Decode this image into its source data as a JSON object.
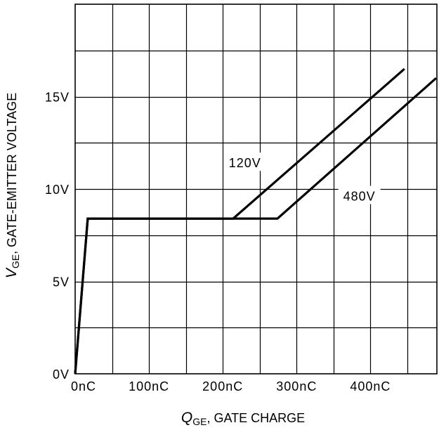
{
  "chart_data": {
    "type": "line",
    "title": "",
    "xlabel": {
      "var": "Q",
      "sub": "GE",
      "rest": ", GATE CHARGE"
    },
    "ylabel": {
      "var": "V",
      "sub": "GE",
      "rest": ", GATE-EMITTER VOLTAGE"
    },
    "xlim": [
      0,
      490
    ],
    "ylim": [
      0,
      20
    ],
    "x_ticks": [
      {
        "value": 0,
        "label": "0nC"
      },
      {
        "value": 100,
        "label": "100nC"
      },
      {
        "value": 200,
        "label": "200nC"
      },
      {
        "value": 300,
        "label": "300nC"
      },
      {
        "value": 400,
        "label": "400nC"
      }
    ],
    "y_ticks": [
      {
        "value": 0,
        "label": "0V"
      },
      {
        "value": 5,
        "label": "5V"
      },
      {
        "value": 10,
        "label": "10V"
      },
      {
        "value": 15,
        "label": "15V"
      }
    ],
    "x_grid_step": 50,
    "y_grid_step": 2.5,
    "grid": true,
    "series": [
      {
        "name": "120V",
        "x": [
          0,
          17,
          214,
          446
        ],
        "y": [
          0,
          8.4,
          8.4,
          16.5
        ]
      },
      {
        "name": "480V",
        "x": [
          0,
          17,
          274,
          489
        ],
        "y": [
          0,
          8.4,
          8.4,
          16
        ]
      }
    ],
    "annotations": [
      {
        "text": "120V",
        "x": 230,
        "y": 11.4
      },
      {
        "text": "480V",
        "x": 385,
        "y": 9.6
      }
    ]
  }
}
